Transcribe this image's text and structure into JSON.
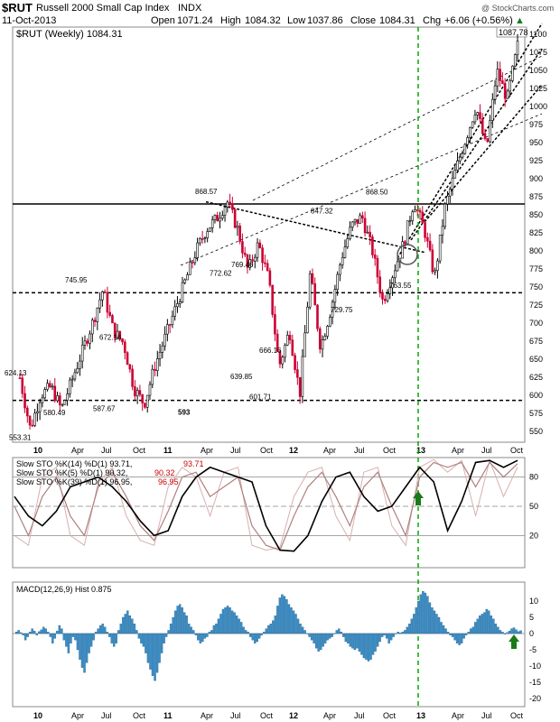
{
  "header": {
    "symbol": "$RUT",
    "name": "Russell 2000 Small Cap Index",
    "exchange": "INDX",
    "date": "11-Oct-2013",
    "open_label": "Open",
    "open": "1071.24",
    "high_label": "High",
    "high": "1084.32",
    "low_label": "Low",
    "low": "1037.86",
    "close_label": "Close",
    "close": "1084.31",
    "chg_label": "Chg",
    "chg": "+6.06 (+0.56%)",
    "chg_arrow": "▲",
    "watermark": "@ StockCharts.com",
    "legend": "$RUT (Weekly) 1084.31",
    "last_tag": "1087.78"
  },
  "chart_data": [
    {
      "type": "line",
      "name": "price",
      "title": "$RUT (Weekly) 1084.31",
      "xlabel": "",
      "ylabel": "",
      "x_ticks": [
        "10",
        "Apr",
        "Jul",
        "Oct",
        "11",
        "Apr",
        "Jul",
        "Oct",
        "12",
        "Apr",
        "Jul",
        "Oct",
        "13",
        "Apr",
        "Jul",
        "Oct"
      ],
      "y_ticks": [
        550,
        575,
        600,
        625,
        650,
        675,
        700,
        725,
        750,
        775,
        800,
        825,
        850,
        875,
        900,
        925,
        950,
        975,
        1000,
        1025,
        1050,
        1075,
        1100
      ],
      "ylim": [
        535,
        1110
      ],
      "x": [
        0,
        1,
        2,
        3,
        4,
        5,
        6,
        7,
        8,
        9,
        10,
        11,
        12,
        13,
        14,
        15,
        16,
        17,
        18,
        19,
        20,
        21,
        22,
        23,
        24,
        25,
        26,
        27,
        28,
        29,
        30,
        31,
        32,
        33,
        34,
        35,
        36,
        37,
        38,
        39,
        40,
        41,
        42,
        43,
        44,
        45,
        46,
        47,
        48
      ],
      "values": [
        624.13,
        553.31,
        600,
        612,
        580.49,
        620,
        660,
        700,
        745.95,
        690,
        672.16,
        610,
        587.67,
        640,
        680,
        720,
        760,
        800,
        830,
        845,
        868.57,
        830,
        772.62,
        810,
        760,
        639.85,
        690,
        601.71,
        769.46,
        666.16,
        720,
        790,
        835,
        847.32,
        800,
        729.75,
        770,
        810,
        868.5,
        830,
        763.55,
        860,
        910,
        955,
        1000,
        940,
        1050,
        1010,
        1084.31
      ],
      "labels": [
        "624.13",
        "553.31",
        "580.49",
        "745.95",
        "672.16",
        "587.67",
        "868.57",
        "772.62",
        "639.85",
        "601.71",
        "769.46",
        "666.16",
        "847.32",
        "729.75",
        "868.50",
        "763.55",
        "593",
        "1087.78"
      ],
      "horizontal_lines": [
        865,
        742,
        593
      ]
    },
    {
      "type": "line",
      "name": "slow_stochastics",
      "legend": [
        {
          "label": "Slow STO %K(14) %D(1) 93.71,",
          "value": "93.71",
          "color": "#cc0000"
        },
        {
          "label": "Slow STO %K(5) %D(1) 90.32,",
          "value": "90.32",
          "color": "#cc0000"
        },
        {
          "label": "Slow STO %K(39) %D(1) 96.95,",
          "value": "96.95",
          "color": "#cc0000"
        }
      ],
      "y_ticks": [
        20,
        50,
        80
      ],
      "ylim": [
        0,
        100
      ],
      "series": [
        {
          "name": "%K(39)",
          "values": [
            60,
            40,
            30,
            45,
            70,
            75,
            80,
            70,
            55,
            35,
            20,
            25,
            60,
            80,
            90,
            85,
            80,
            75,
            30,
            5,
            4,
            20,
            55,
            80,
            85,
            60,
            45,
            50,
            70,
            90,
            75,
            25,
            55,
            95,
            97,
            90,
            97
          ]
        },
        {
          "name": "%K(14)",
          "values": [
            50,
            20,
            60,
            80,
            40,
            20,
            70,
            85,
            60,
            30,
            15,
            45,
            80,
            85,
            60,
            70,
            80,
            30,
            10,
            5,
            40,
            70,
            85,
            60,
            30,
            70,
            85,
            50,
            20,
            80,
            95,
            90,
            95,
            70,
            95,
            80,
            93.71
          ]
        },
        {
          "name": "%K(5)",
          "values": [
            20,
            10,
            80,
            90,
            20,
            10,
            75,
            90,
            40,
            15,
            10,
            70,
            90,
            80,
            40,
            85,
            90,
            10,
            5,
            8,
            60,
            85,
            90,
            40,
            15,
            85,
            90,
            30,
            10,
            90,
            98,
            85,
            97,
            40,
            97,
            60,
            90.32
          ]
        }
      ]
    },
    {
      "type": "bar",
      "name": "macd_histogram",
      "legend": "MACD(12,26,9) Hist 0.875",
      "y_ticks": [
        10,
        5,
        0,
        -5,
        -10,
        -15,
        -20
      ],
      "ylim": [
        -21,
        13
      ],
      "values": [
        0.5,
        1,
        0.3,
        -0.5,
        -2,
        -1,
        0.5,
        1.5,
        0.8,
        -0.5,
        0.6,
        1.2,
        2,
        1.5,
        0.5,
        -1,
        -3,
        -1.5,
        0.8,
        2.5,
        1.5,
        -2,
        -4,
        -6,
        -3,
        -1,
        -2,
        -5,
        -8,
        -10.5,
        -12,
        -9,
        -6,
        -4,
        -2,
        0.5,
        1.5,
        2.5,
        3,
        2,
        0.5,
        -1,
        -3,
        -4,
        -3,
        1,
        3,
        5,
        6,
        7,
        5.5,
        4.5,
        3,
        1,
        -1.5,
        -3,
        -4,
        -6,
        -9,
        -11,
        -13,
        -14.5,
        -12,
        -9,
        -6,
        -3,
        -1,
        1,
        3,
        5,
        7,
        8.5,
        9,
        8,
        6.5,
        5.5,
        3,
        2,
        1,
        -0.5,
        -2,
        -3,
        -2.5,
        -1.5,
        -1,
        0.5,
        1,
        2.5,
        3,
        4.5,
        6,
        7.5,
        8,
        8.5,
        8,
        7,
        6.5,
        5.5,
        4.5,
        3.5,
        2,
        1,
        0.5,
        -1,
        -2,
        -3,
        -2.5,
        -1.5,
        -0.5,
        0.5,
        1.5,
        2.5,
        3,
        4,
        5.5,
        8.5,
        11,
        12,
        11.5,
        10.5,
        9,
        8,
        7,
        6,
        4.5,
        3,
        2,
        1,
        0,
        -1,
        -2,
        -3,
        -4.5,
        -5.5,
        -5,
        -4,
        -3,
        -2,
        -1.5,
        -1,
        0,
        1,
        1.5,
        0.5,
        -1,
        -2.5,
        -3,
        -4,
        -4.5,
        -5,
        -4.5,
        -5.5,
        -6.5,
        -7.5,
        -8,
        -8.5,
        -8,
        -6.5,
        -5.5,
        -4,
        -2.5,
        -1,
        -0.5,
        -1.5,
        -3,
        -2,
        -1,
        0,
        0.5,
        0.2,
        0.5,
        1,
        2,
        3,
        4.5,
        6,
        8,
        10,
        12,
        13,
        12.5,
        11.5,
        9.5,
        8,
        7,
        6,
        5,
        3.5,
        2.5,
        1.5,
        0.5,
        -0.5,
        -1,
        -2,
        -3,
        -3.5,
        -3,
        -1.5,
        -0.5,
        0.5,
        1.5,
        2,
        3.5,
        4.5,
        5.5,
        6,
        6.5,
        7.5,
        7,
        5.5,
        4.5,
        3,
        2,
        1,
        0.5,
        -0.2,
        0.3,
        0.8,
        1.5,
        1.8,
        1.2,
        0.6,
        0.875
      ],
      "x_ticks": [
        "10",
        "Apr",
        "Jul",
        "Oct",
        "11",
        "Apr",
        "Jul",
        "Oct",
        "12",
        "Apr",
        "Jul",
        "Oct",
        "13",
        "Apr",
        "Jul",
        "Oct"
      ]
    }
  ],
  "colors": {
    "up": "#000000",
    "down": "#cc0033",
    "hist": "#3b8fc7",
    "hist_edge": "#1e5a8a",
    "vline": "#00aa00",
    "arrow": "#1a7a1a"
  }
}
